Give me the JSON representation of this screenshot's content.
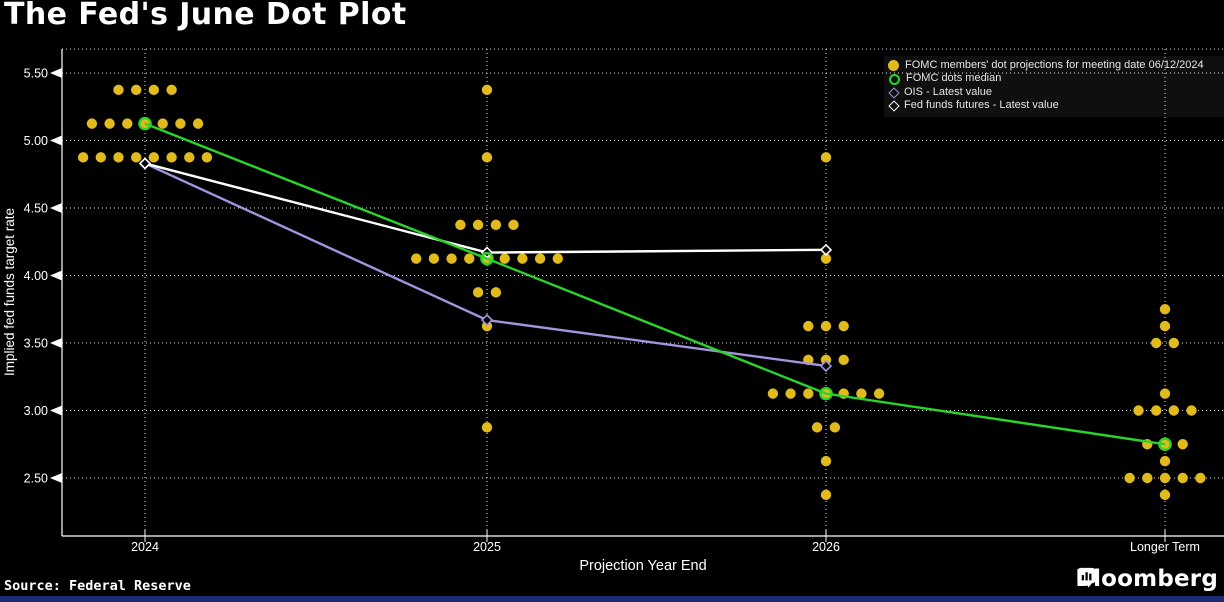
{
  "header": {
    "title": "The Fed's June Dot Plot"
  },
  "footer": {
    "source": "Source: Federal Reserve",
    "logo_text": "Bloomberg"
  },
  "colors": {
    "background": "#000000",
    "dot_yellow": "#e1bb1e",
    "median_green": "#2bd42b",
    "ois_purple": "#a394dd",
    "futures_white": "#ffffff",
    "grid": "#e8e8e8",
    "axis_text": "#ffffff",
    "legend_text": "#e6e6e6",
    "bottom_bar_blue": "#1a2b74"
  },
  "chart_data": {
    "type": "scatter",
    "title": "The Fed's June Dot Plot",
    "xlabel": "Projection Year End",
    "ylabel": "Implied fed funds target rate",
    "categories": [
      "2024",
      "2025",
      "2026",
      "Longer Term"
    ],
    "yticks": [
      2.5,
      3.0,
      3.5,
      4.0,
      4.5,
      5.0,
      5.5
    ],
    "ylim": [
      2.05,
      5.7
    ],
    "grid": "dotted",
    "legend_position": "top-right",
    "dot_series": {
      "name": "FOMC members' dot projections for meeting date 06/12/2024",
      "marker": "filled-circle",
      "groups": [
        {
          "category": "2024",
          "dots": [
            {
              "rate": 5.375,
              "count": 4
            },
            {
              "rate": 5.125,
              "count": 7
            },
            {
              "rate": 4.875,
              "count": 8
            }
          ]
        },
        {
          "category": "2025",
          "dots": [
            {
              "rate": 5.375,
              "count": 1
            },
            {
              "rate": 4.875,
              "count": 1
            },
            {
              "rate": 4.375,
              "count": 4
            },
            {
              "rate": 4.125,
              "count": 9
            },
            {
              "rate": 3.875,
              "count": 2
            },
            {
              "rate": 3.625,
              "count": 1
            },
            {
              "rate": 2.875,
              "count": 1
            }
          ]
        },
        {
          "category": "2026",
          "dots": [
            {
              "rate": 4.875,
              "count": 1
            },
            {
              "rate": 4.125,
              "count": 1
            },
            {
              "rate": 3.625,
              "count": 3
            },
            {
              "rate": 3.375,
              "count": 3
            },
            {
              "rate": 3.125,
              "count": 7
            },
            {
              "rate": 2.875,
              "count": 2
            },
            {
              "rate": 2.625,
              "count": 1
            },
            {
              "rate": 2.375,
              "count": 1
            }
          ]
        },
        {
          "category": "Longer Term",
          "dots": [
            {
              "rate": 3.75,
              "count": 1
            },
            {
              "rate": 3.625,
              "count": 1
            },
            {
              "rate": 3.5,
              "count": 2
            },
            {
              "rate": 3.125,
              "count": 1
            },
            {
              "rate": 3.0,
              "count": 4
            },
            {
              "rate": 2.75,
              "count": 3
            },
            {
              "rate": 2.625,
              "count": 1
            },
            {
              "rate": 2.5,
              "count": 5
            },
            {
              "rate": 2.375,
              "count": 1
            }
          ]
        }
      ]
    },
    "line_series": [
      {
        "name": "FOMC dots median",
        "marker": "open-circle",
        "color_key": "median_green",
        "points": [
          {
            "x": "2024",
            "y": 5.125
          },
          {
            "x": "2025",
            "y": 4.125
          },
          {
            "x": "2026",
            "y": 3.125
          },
          {
            "x": "Longer Term",
            "y": 2.75
          }
        ]
      },
      {
        "name": "OIS - Latest value",
        "marker": "open-diamond",
        "color_key": "ois_purple",
        "points": [
          {
            "x": "2024",
            "y": 4.83
          },
          {
            "x": "2025",
            "y": 3.67
          },
          {
            "x": "2026",
            "y": 3.33
          }
        ]
      },
      {
        "name": "Fed funds futures - Latest value",
        "marker": "open-diamond",
        "color_key": "futures_white",
        "points": [
          {
            "x": "2024",
            "y": 4.83
          },
          {
            "x": "2025",
            "y": 4.17
          },
          {
            "x": "2026",
            "y": 4.19
          }
        ]
      }
    ]
  }
}
